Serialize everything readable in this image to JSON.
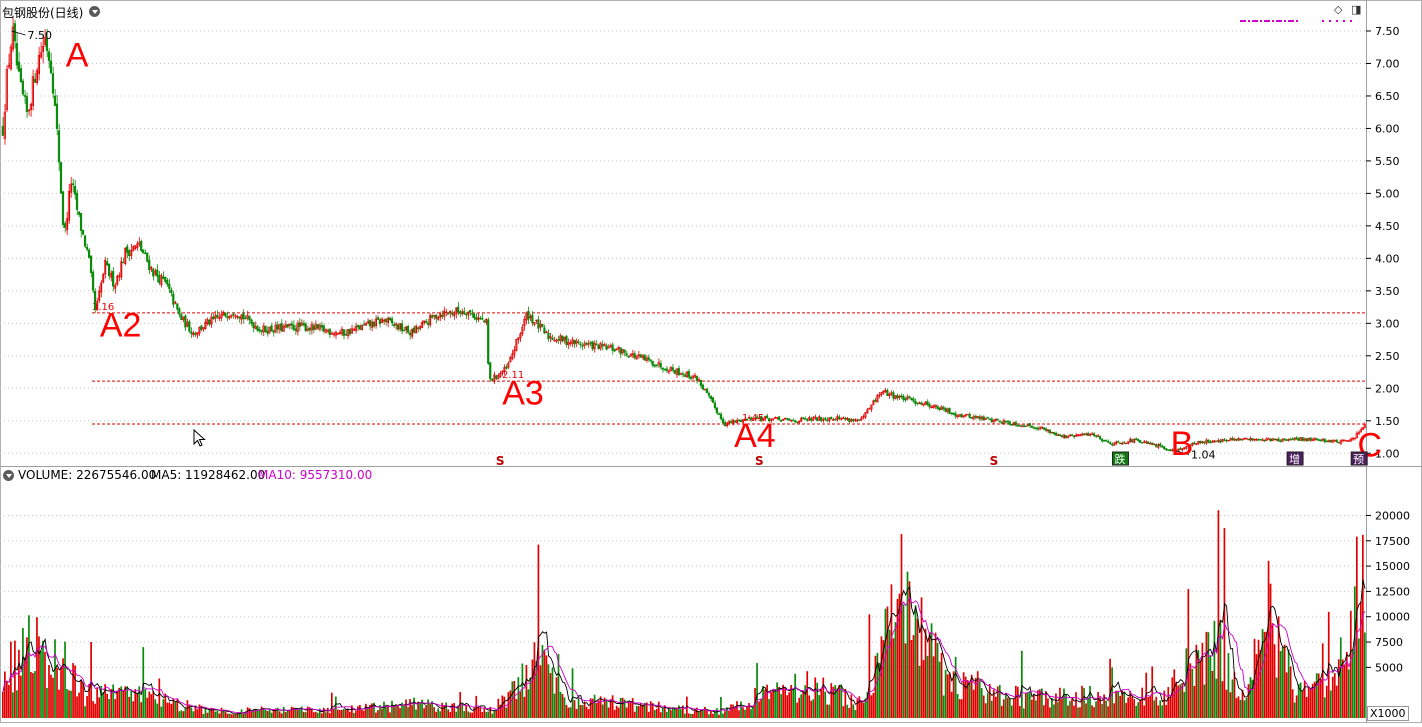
{
  "title_bar": {
    "stock_title": "包钢股份(日线)",
    "volume_label": "VOLUME: 22675546.00",
    "ma5_label": "MA5: 11928462.00",
    "ma10_label": "MA10: 9557310.00",
    "unit_label": "X1000"
  },
  "colors": {
    "up": "#e00000",
    "down": "#0a8a0a",
    "ref_line": "#e00000",
    "annotation": "#ff0000",
    "ma5": "#000000",
    "ma10": "#cc00cc",
    "grid": "#c8c8c8",
    "legend_dash": "#cc00cc"
  },
  "chart_data": [
    {
      "type": "candlestick",
      "title": "包钢股份(日线)",
      "ylim": [
        0.85,
        7.7
      ],
      "y_ticks": [
        "7.50",
        "7.00",
        "6.50",
        "6.00",
        "5.50",
        "5.00",
        "4.50",
        "4.00",
        "3.50",
        "3.00",
        "2.50",
        "2.00",
        "1.50",
        "1.00"
      ],
      "price_path": [
        [
          0,
          6.0
        ],
        [
          0.003,
          6.8
        ],
        [
          0.007,
          7.5
        ],
        [
          0.012,
          6.7
        ],
        [
          0.018,
          6.2
        ],
        [
          0.025,
          7.0
        ],
        [
          0.031,
          7.4
        ],
        [
          0.036,
          6.9
        ],
        [
          0.041,
          5.6
        ],
        [
          0.045,
          4.3
        ],
        [
          0.05,
          5.2
        ],
        [
          0.056,
          4.6
        ],
        [
          0.063,
          4.0
        ],
        [
          0.068,
          3.16
        ],
        [
          0.075,
          3.9
        ],
        [
          0.082,
          3.6
        ],
        [
          0.09,
          4.1
        ],
        [
          0.1,
          4.2
        ],
        [
          0.11,
          3.8
        ],
        [
          0.12,
          3.6
        ],
        [
          0.13,
          3.1
        ],
        [
          0.14,
          2.85
        ],
        [
          0.15,
          3.0
        ],
        [
          0.17,
          3.2
        ],
        [
          0.19,
          2.9
        ],
        [
          0.22,
          2.95
        ],
        [
          0.25,
          2.85
        ],
        [
          0.28,
          3.05
        ],
        [
          0.3,
          2.85
        ],
        [
          0.32,
          3.15
        ],
        [
          0.34,
          3.2
        ],
        [
          0.355,
          3.0
        ],
        [
          0.357,
          2.11
        ],
        [
          0.37,
          2.3
        ],
        [
          0.385,
          3.15
        ],
        [
          0.4,
          2.8
        ],
        [
          0.42,
          2.7
        ],
        [
          0.45,
          2.6
        ],
        [
          0.47,
          2.45
        ],
        [
          0.49,
          2.3
        ],
        [
          0.51,
          2.15
        ],
        [
          0.52,
          1.8
        ],
        [
          0.53,
          1.45
        ],
        [
          0.55,
          1.55
        ],
        [
          0.58,
          1.5
        ],
        [
          0.61,
          1.55
        ],
        [
          0.63,
          1.5
        ],
        [
          0.645,
          1.95
        ],
        [
          0.66,
          1.85
        ],
        [
          0.68,
          1.75
        ],
        [
          0.7,
          1.6
        ],
        [
          0.73,
          1.5
        ],
        [
          0.76,
          1.4
        ],
        [
          0.78,
          1.25
        ],
        [
          0.8,
          1.3
        ],
        [
          0.81,
          1.18
        ],
        [
          0.815,
          1.15
        ],
        [
          0.83,
          1.2
        ],
        [
          0.85,
          1.1
        ],
        [
          0.86,
          1.04
        ],
        [
          0.88,
          1.18
        ],
        [
          0.9,
          1.2
        ],
        [
          0.92,
          1.22
        ],
        [
          0.94,
          1.2
        ],
        [
          0.96,
          1.22
        ],
        [
          0.98,
          1.18
        ],
        [
          0.99,
          1.2
        ],
        [
          1.0,
          1.42
        ]
      ],
      "reference_lines": [
        {
          "value": 3.16,
          "label": "3.16"
        },
        {
          "value": 2.11,
          "label": "2.11"
        },
        {
          "value": 1.45,
          "label": "1.45"
        }
      ],
      "price_labels": [
        {
          "text": "7.50",
          "x": 0.007,
          "value": 7.5
        },
        {
          "text": "1.04",
          "x": 0.86,
          "value": 1.04
        }
      ],
      "annotations": [
        {
          "text": "A",
          "x": 0.035,
          "value": 6.95
        },
        {
          "text": "A2",
          "x": 0.06,
          "value": 2.8
        },
        {
          "text": "A3",
          "x": 0.355,
          "value": 1.75
        },
        {
          "text": "A4",
          "x": 0.525,
          "value": 1.1
        },
        {
          "text": "B",
          "x": 0.845,
          "value": 0.97
        },
        {
          "text": "C",
          "x": 0.982,
          "value": 0.95
        }
      ],
      "event_markers": [
        {
          "text": "S",
          "x": 0.365
        },
        {
          "text": "S",
          "x": 0.555
        },
        {
          "text": "S",
          "x": 0.727
        },
        {
          "text": "跌",
          "x": 0.82
        },
        {
          "text": "增",
          "x": 0.948
        },
        {
          "text": "预",
          "x": 0.995
        }
      ]
    },
    {
      "type": "bar",
      "title": "VOLUME",
      "y_unit": "X1000",
      "ylim": [
        0,
        23500
      ],
      "y_ticks": [
        "20000",
        "17500",
        "15000",
        "12500",
        "10000",
        "7500",
        "5000"
      ],
      "volume_envelope": [
        [
          0,
          6000
        ],
        [
          0.02,
          9000
        ],
        [
          0.04,
          8000
        ],
        [
          0.06,
          3000
        ],
        [
          0.1,
          3000
        ],
        [
          0.15,
          1000
        ],
        [
          0.25,
          1000
        ],
        [
          0.3,
          1800
        ],
        [
          0.36,
          1000
        ],
        [
          0.395,
          7500
        ],
        [
          0.41,
          2500
        ],
        [
          0.5,
          1200
        ],
        [
          0.53,
          800
        ],
        [
          0.55,
          2500
        ],
        [
          0.59,
          4500
        ],
        [
          0.63,
          2000
        ],
        [
          0.66,
          16000
        ],
        [
          0.69,
          6000
        ],
        [
          0.73,
          3000
        ],
        [
          0.76,
          2500
        ],
        [
          0.8,
          3000
        ],
        [
          0.85,
          2500
        ],
        [
          0.89,
          10000
        ],
        [
          0.91,
          3000
        ],
        [
          0.93,
          14000
        ],
        [
          0.95,
          3500
        ],
        [
          0.97,
          4000
        ],
        [
          0.985,
          8000
        ],
        [
          1.0,
          22000
        ]
      ]
    }
  ]
}
